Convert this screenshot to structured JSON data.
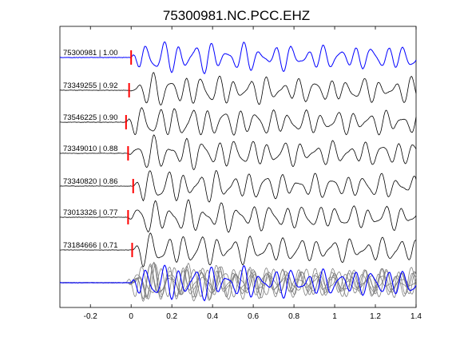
{
  "chart_data": {
    "type": "line",
    "title": "75300981.NC.PCC.EHZ",
    "xlabel": "",
    "ylabel": "",
    "xlim": [
      -0.35,
      1.4
    ],
    "xticks": [
      -0.2,
      0,
      0.2,
      0.4,
      0.6,
      0.8,
      1,
      1.2,
      1.4
    ],
    "xtick_labels": [
      "-0.2",
      "0",
      "0.2",
      "0.4",
      "0.6",
      "0.8",
      "1",
      "1.2",
      "1.4"
    ],
    "grid": false,
    "legend": "none",
    "colors": {
      "reference": "#0000ff",
      "trace": "#000000",
      "pick": "#ff0000",
      "stack": "#808080"
    },
    "traces": [
      {
        "label": "75300981 | 1.00",
        "pick_time": 0.0,
        "reference": true
      },
      {
        "label": "73349255 | 0.92",
        "pick_time": -0.01
      },
      {
        "label": "73546225 | 0.90",
        "pick_time": -0.025
      },
      {
        "label": "73349010 | 0.88",
        "pick_time": -0.015
      },
      {
        "label": "73340820 | 0.86",
        "pick_time": 0.01
      },
      {
        "label": "73013326 | 0.77",
        "pick_time": -0.015
      },
      {
        "label": "73184666 | 0.71",
        "pick_time": 0.005
      }
    ]
  }
}
